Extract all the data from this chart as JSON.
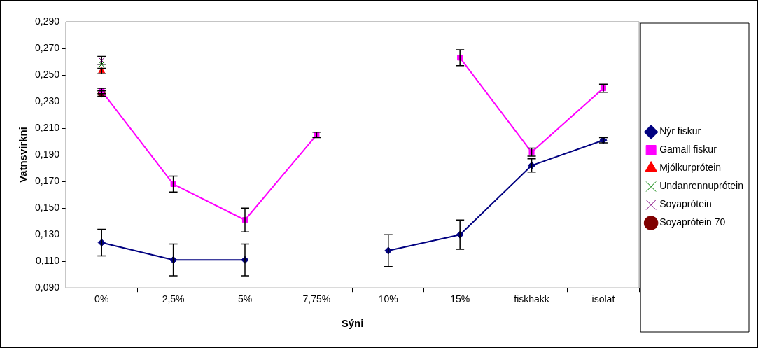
{
  "chart_data": {
    "type": "line",
    "xlabel": "Sýni",
    "ylabel": "Vatnsvirkni",
    "categories": [
      "0%",
      "2,5%",
      "5%",
      "7,75%",
      "10%",
      "15%",
      "fiskhakk",
      "isolat"
    ],
    "series": [
      {
        "name": "Nýr fiskur",
        "color": "#000080",
        "marker": "diamond",
        "values": [
          0.124,
          0.111,
          0.111,
          null,
          0.118,
          0.13,
          0.182,
          0.201
        ],
        "errors": [
          0.01,
          0.012,
          0.012,
          null,
          0.012,
          0.011,
          0.005,
          0.002
        ]
      },
      {
        "name": "Gamall fiskur",
        "color": "#ff00ff",
        "marker": "square",
        "values": [
          0.238,
          0.168,
          0.141,
          0.205,
          null,
          0.263,
          0.192,
          0.24
        ],
        "errors": [
          0.002,
          0.006,
          0.009,
          0.002,
          null,
          0.006,
          0.003,
          0.003
        ]
      },
      {
        "name": "Mjólkurprótein",
        "color": "#ff0000",
        "marker": "triangle",
        "values": [
          0.253,
          null,
          null,
          null,
          null,
          null,
          null,
          null
        ],
        "errors": [
          0.002,
          null,
          null,
          null,
          null,
          null,
          null,
          null
        ]
      },
      {
        "name": "Undanrennuprótein",
        "color": "#008000",
        "marker": "cross",
        "values": [
          0.258,
          null,
          null,
          null,
          null,
          null,
          null,
          null
        ]
      },
      {
        "name": "Soyaprótein",
        "color": "#800080",
        "marker": "cross",
        "values": [
          0.261,
          null,
          null,
          null,
          null,
          null,
          null,
          null
        ],
        "errors": [
          0.003,
          null,
          null,
          null,
          null,
          null,
          null,
          null
        ]
      },
      {
        "name": "Soyaprótein 70",
        "color": "#800000",
        "marker": "circle",
        "values": [
          0.236,
          null,
          null,
          null,
          null,
          null,
          null,
          null
        ],
        "errors": [
          0.002,
          null,
          null,
          null,
          null,
          null,
          null,
          null
        ]
      }
    ],
    "ylim": [
      0.09,
      0.29
    ],
    "yticks": [
      {
        "value": 0.09,
        "label": "0,090"
      },
      {
        "value": 0.11,
        "label": "0,110"
      },
      {
        "value": 0.13,
        "label": "0,130"
      },
      {
        "value": 0.15,
        "label": "0,150"
      },
      {
        "value": 0.17,
        "label": "0,170"
      },
      {
        "value": 0.19,
        "label": "0,190"
      },
      {
        "value": 0.21,
        "label": "0,210"
      },
      {
        "value": 0.23,
        "label": "0,230"
      },
      {
        "value": 0.25,
        "label": "0,250"
      },
      {
        "value": 0.27,
        "label": "0,270"
      },
      {
        "value": 0.29,
        "label": "0,290"
      }
    ],
    "grid": false,
    "legend": "right"
  }
}
